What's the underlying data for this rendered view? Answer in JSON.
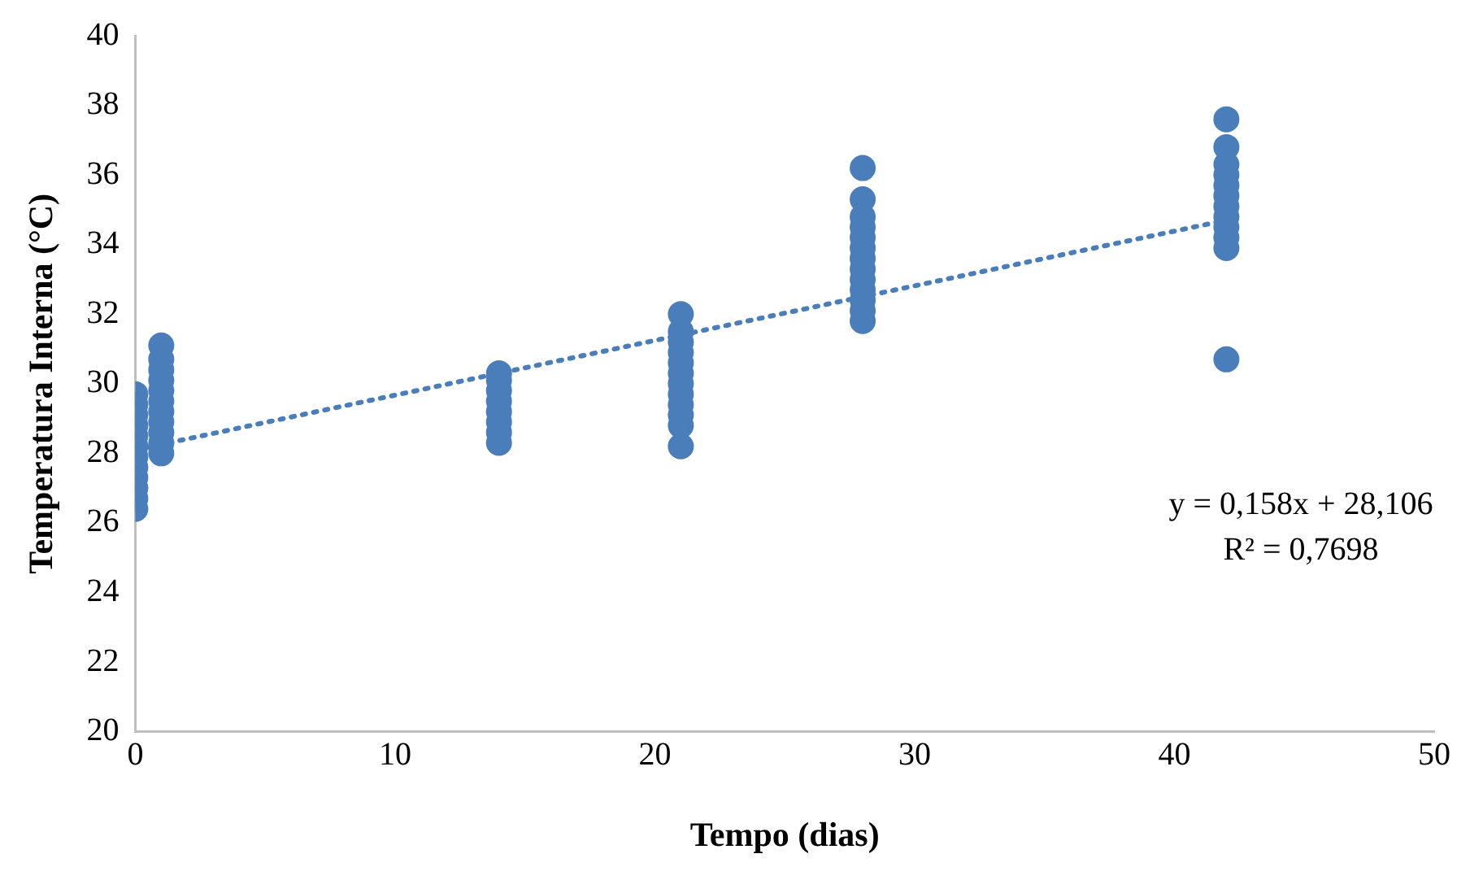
{
  "chart_data": {
    "type": "scatter",
    "xlabel": "Tempo (dias)",
    "ylabel": "Temperatura Interna (°C)",
    "xlim": [
      0,
      50
    ],
    "xticks": [
      0,
      10,
      20,
      30,
      40,
      50
    ],
    "ylim": [
      20,
      40
    ],
    "yticks": [
      20,
      22,
      24,
      26,
      28,
      30,
      32,
      34,
      36,
      38,
      40
    ],
    "grid": false,
    "legend": false,
    "marker": "circle",
    "series": [
      {
        "type": "scatter",
        "color": "#4a7ebb",
        "x": [
          0,
          0,
          0,
          0,
          0,
          0,
          0,
          0,
          0,
          0,
          0,
          0,
          1,
          1,
          1,
          1,
          1,
          1,
          1,
          1,
          1,
          1,
          1,
          14,
          14,
          14,
          14,
          14,
          14,
          14,
          14,
          21,
          21,
          21,
          21,
          21,
          21,
          21,
          21,
          21,
          21,
          21,
          21,
          28,
          28,
          28,
          28,
          28,
          28,
          28,
          28,
          28,
          28,
          28,
          28,
          28,
          42,
          42,
          42,
          42,
          42,
          42,
          42,
          42,
          42,
          42,
          42,
          42
        ],
        "values": [
          26.4,
          26.7,
          27.0,
          27.3,
          27.6,
          27.9,
          28.2,
          28.5,
          28.8,
          29.1,
          29.4,
          29.7,
          28.0,
          28.3,
          28.6,
          28.9,
          29.2,
          29.5,
          29.8,
          30.1,
          30.4,
          30.7,
          31.1,
          28.3,
          28.6,
          28.9,
          29.2,
          29.5,
          29.8,
          30.1,
          30.3,
          28.2,
          28.8,
          29.1,
          29.4,
          29.7,
          30.0,
          30.3,
          30.6,
          30.9,
          31.2,
          31.5,
          32.0,
          31.8,
          32.1,
          32.4,
          32.7,
          33.0,
          33.3,
          33.6,
          33.9,
          34.2,
          34.5,
          34.8,
          35.3,
          36.2,
          30.7,
          33.9,
          34.2,
          34.5,
          34.8,
          35.1,
          35.4,
          35.7,
          36.0,
          36.3,
          36.8,
          37.6
        ]
      },
      {
        "type": "line",
        "color": "#4a7ebb",
        "x": [
          0,
          42
        ],
        "values": [
          28.1,
          34.7
        ],
        "line_style": "dotted",
        "marker": "none"
      }
    ],
    "annotations": [
      "y = 0,158x + 28,106",
      "R² = 0,7698"
    ]
  }
}
